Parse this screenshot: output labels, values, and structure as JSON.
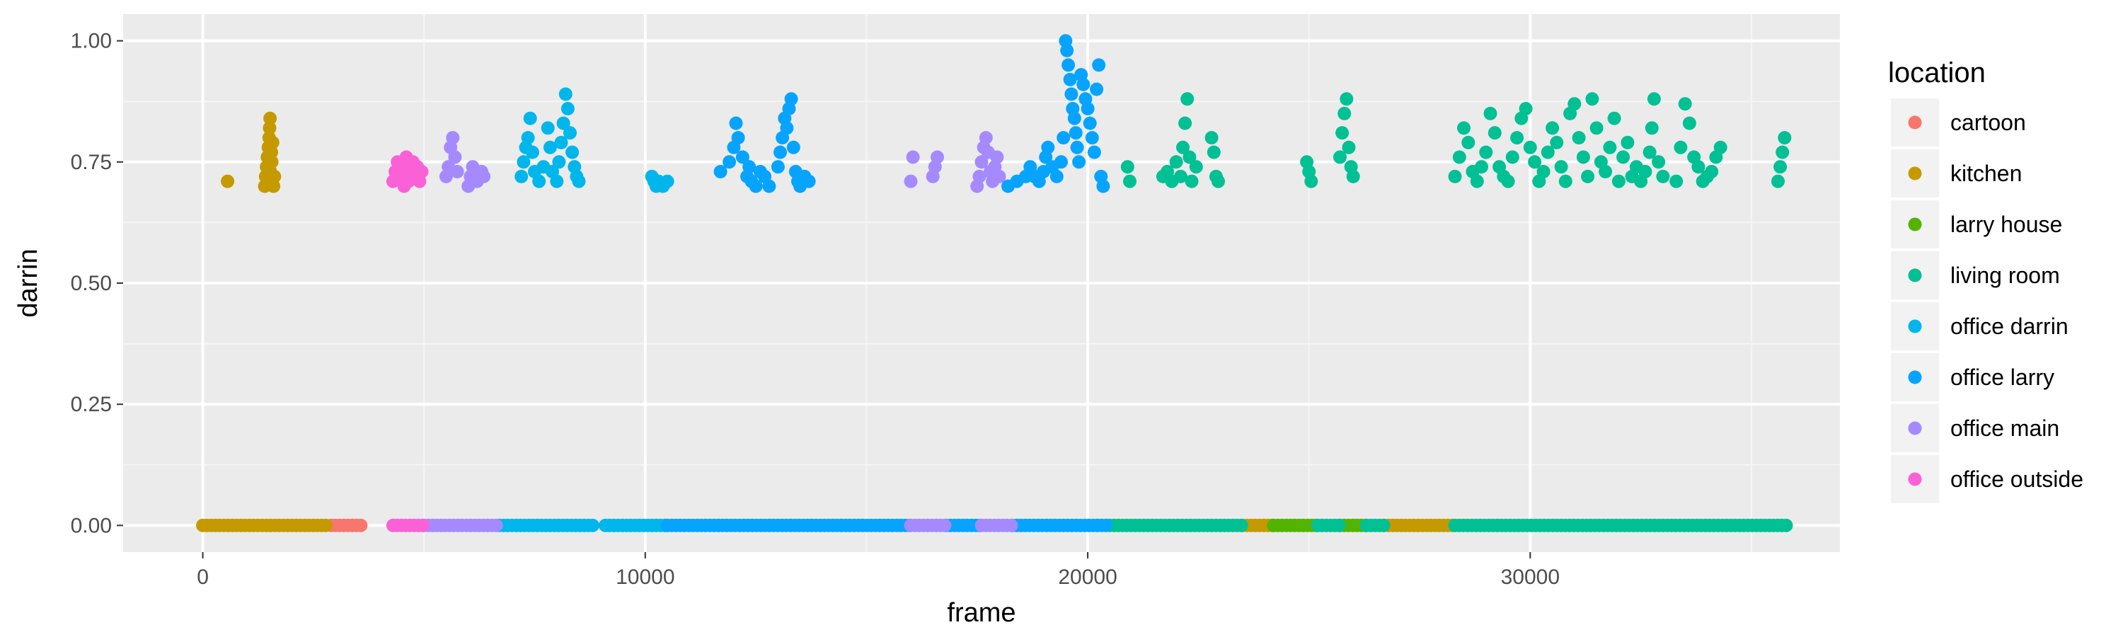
{
  "chart_data": {
    "type": "scatter",
    "title": "",
    "xlabel": "frame",
    "ylabel": "darrin",
    "xlim": [
      -1800,
      37000
    ],
    "ylim": [
      -0.055,
      1.055
    ],
    "x_ticks": [
      0,
      10000,
      20000,
      30000
    ],
    "x_tick_labels": [
      "0",
      "10000",
      "20000",
      "30000"
    ],
    "y_ticks": [
      0.0,
      0.25,
      0.5,
      0.75,
      1.0
    ],
    "y_tick_labels": [
      "0.00",
      "0.25",
      "0.50",
      "0.75",
      "1.00"
    ],
    "grid": true,
    "legend_title": "location",
    "legend_position": "right",
    "series": [
      {
        "name": "cartoon",
        "color": "#F8766D",
        "zero_ranges": [
          [
            2900,
            3650
          ]
        ],
        "points": []
      },
      {
        "name": "kitchen",
        "color": "#C49A00",
        "zero_ranges": [
          [
            0,
            2850
          ],
          [
            23500,
            24200
          ],
          [
            26700,
            28300
          ]
        ],
        "points": [
          [
            560,
            0.71
          ],
          [
            1400,
            0.7
          ],
          [
            1420,
            0.72
          ],
          [
            1440,
            0.74
          ],
          [
            1460,
            0.76
          ],
          [
            1480,
            0.78
          ],
          [
            1500,
            0.8
          ],
          [
            1510,
            0.82
          ],
          [
            1520,
            0.84
          ],
          [
            1530,
            0.73
          ],
          [
            1540,
            0.71
          ],
          [
            1550,
            0.77
          ],
          [
            1560,
            0.75
          ],
          [
            1580,
            0.79
          ],
          [
            1600,
            0.7
          ],
          [
            1620,
            0.72
          ]
        ]
      },
      {
        "name": "larry house",
        "color": "#53B400",
        "zero_ranges": [
          [
            24200,
            25200
          ],
          [
            25700,
            26300
          ]
        ],
        "points": []
      },
      {
        "name": "living room",
        "color": "#00C094",
        "zero_ranges": [
          [
            20500,
            23500
          ],
          [
            25200,
            25700
          ],
          [
            26300,
            26700
          ],
          [
            28300,
            35800
          ]
        ],
        "points": [
          [
            20900,
            0.74
          ],
          [
            20950,
            0.71
          ],
          [
            21700,
            0.72
          ],
          [
            21800,
            0.73
          ],
          [
            21900,
            0.71
          ],
          [
            22000,
            0.75
          ],
          [
            22100,
            0.72
          ],
          [
            22150,
            0.78
          ],
          [
            22200,
            0.83
          ],
          [
            22250,
            0.88
          ],
          [
            22300,
            0.76
          ],
          [
            22350,
            0.71
          ],
          [
            22450,
            0.74
          ],
          [
            22800,
            0.8
          ],
          [
            22850,
            0.77
          ],
          [
            22900,
            0.72
          ],
          [
            22950,
            0.71
          ],
          [
            24950,
            0.75
          ],
          [
            25000,
            0.73
          ],
          [
            25050,
            0.71
          ],
          [
            25700,
            0.76
          ],
          [
            25750,
            0.81
          ],
          [
            25800,
            0.85
          ],
          [
            25850,
            0.88
          ],
          [
            25900,
            0.78
          ],
          [
            25950,
            0.74
          ],
          [
            26000,
            0.72
          ],
          [
            28300,
            0.72
          ],
          [
            28400,
            0.76
          ],
          [
            28500,
            0.82
          ],
          [
            28600,
            0.79
          ],
          [
            28700,
            0.73
          ],
          [
            28800,
            0.71
          ],
          [
            28900,
            0.74
          ],
          [
            29000,
            0.77
          ],
          [
            29100,
            0.85
          ],
          [
            29200,
            0.81
          ],
          [
            29300,
            0.74
          ],
          [
            29400,
            0.72
          ],
          [
            29500,
            0.71
          ],
          [
            29600,
            0.76
          ],
          [
            29700,
            0.8
          ],
          [
            29800,
            0.84
          ],
          [
            29900,
            0.86
          ],
          [
            30000,
            0.78
          ],
          [
            30100,
            0.75
          ],
          [
            30200,
            0.71
          ],
          [
            30300,
            0.73
          ],
          [
            30400,
            0.77
          ],
          [
            30500,
            0.82
          ],
          [
            30600,
            0.79
          ],
          [
            30700,
            0.74
          ],
          [
            30800,
            0.71
          ],
          [
            30900,
            0.85
          ],
          [
            31000,
            0.87
          ],
          [
            31100,
            0.8
          ],
          [
            31200,
            0.76
          ],
          [
            31300,
            0.72
          ],
          [
            31400,
            0.88
          ],
          [
            31500,
            0.82
          ],
          [
            31600,
            0.75
          ],
          [
            31700,
            0.73
          ],
          [
            31800,
            0.78
          ],
          [
            31900,
            0.84
          ],
          [
            32000,
            0.71
          ],
          [
            32100,
            0.76
          ],
          [
            32200,
            0.79
          ],
          [
            32300,
            0.72
          ],
          [
            32400,
            0.74
          ],
          [
            32500,
            0.71
          ],
          [
            32600,
            0.73
          ],
          [
            32700,
            0.77
          ],
          [
            32750,
            0.82
          ],
          [
            32800,
            0.88
          ],
          [
            32900,
            0.75
          ],
          [
            33000,
            0.72
          ],
          [
            33300,
            0.71
          ],
          [
            33400,
            0.78
          ],
          [
            33500,
            0.87
          ],
          [
            33600,
            0.83
          ],
          [
            33700,
            0.76
          ],
          [
            33800,
            0.74
          ],
          [
            33900,
            0.71
          ],
          [
            34000,
            0.72
          ],
          [
            34100,
            0.73
          ],
          [
            34200,
            0.76
          ],
          [
            34300,
            0.78
          ],
          [
            35600,
            0.71
          ],
          [
            35650,
            0.74
          ],
          [
            35700,
            0.77
          ],
          [
            35750,
            0.8
          ]
        ]
      },
      {
        "name": "office darrin",
        "color": "#00B6EB",
        "zero_ranges": [
          [
            6700,
            8900
          ],
          [
            9100,
            10500
          ]
        ],
        "points": [
          [
            7200,
            0.72
          ],
          [
            7250,
            0.75
          ],
          [
            7300,
            0.78
          ],
          [
            7350,
            0.8
          ],
          [
            7400,
            0.84
          ],
          [
            7450,
            0.77
          ],
          [
            7500,
            0.73
          ],
          [
            7600,
            0.71
          ],
          [
            7700,
            0.74
          ],
          [
            7800,
            0.82
          ],
          [
            7850,
            0.78
          ],
          [
            7900,
            0.73
          ],
          [
            8000,
            0.71
          ],
          [
            8050,
            0.75
          ],
          [
            8100,
            0.79
          ],
          [
            8150,
            0.83
          ],
          [
            8200,
            0.89
          ],
          [
            8250,
            0.86
          ],
          [
            8300,
            0.81
          ],
          [
            8350,
            0.77
          ],
          [
            8400,
            0.74
          ],
          [
            8450,
            0.72
          ],
          [
            8500,
            0.71
          ],
          [
            10150,
            0.72
          ],
          [
            10200,
            0.71
          ],
          [
            10250,
            0.7
          ],
          [
            10300,
            0.71
          ],
          [
            10400,
            0.7
          ],
          [
            10500,
            0.71
          ]
        ]
      },
      {
        "name": "office larry",
        "color": "#06A4FF",
        "zero_ranges": [
          [
            10500,
            16000
          ],
          [
            16800,
            17600
          ],
          [
            18300,
            20500
          ]
        ],
        "points": [
          [
            11700,
            0.73
          ],
          [
            11900,
            0.75
          ],
          [
            12000,
            0.78
          ],
          [
            12050,
            0.83
          ],
          [
            12100,
            0.8
          ],
          [
            12200,
            0.76
          ],
          [
            12300,
            0.72
          ],
          [
            12350,
            0.74
          ],
          [
            12400,
            0.71
          ],
          [
            12500,
            0.7
          ],
          [
            12600,
            0.73
          ],
          [
            12700,
            0.72
          ],
          [
            12800,
            0.7
          ],
          [
            13000,
            0.74
          ],
          [
            13050,
            0.77
          ],
          [
            13100,
            0.8
          ],
          [
            13150,
            0.84
          ],
          [
            13200,
            0.82
          ],
          [
            13250,
            0.86
          ],
          [
            13300,
            0.88
          ],
          [
            13350,
            0.78
          ],
          [
            13400,
            0.73
          ],
          [
            13450,
            0.71
          ],
          [
            13500,
            0.7
          ],
          [
            13600,
            0.72
          ],
          [
            13700,
            0.71
          ],
          [
            18200,
            0.7
          ],
          [
            18400,
            0.71
          ],
          [
            18600,
            0.72
          ],
          [
            18700,
            0.74
          ],
          [
            18800,
            0.72
          ],
          [
            18900,
            0.71
          ],
          [
            19000,
            0.73
          ],
          [
            19050,
            0.76
          ],
          [
            19100,
            0.78
          ],
          [
            19200,
            0.74
          ],
          [
            19300,
            0.72
          ],
          [
            19400,
            0.75
          ],
          [
            19450,
            0.8
          ],
          [
            19500,
            1.0
          ],
          [
            19530,
            0.98
          ],
          [
            19560,
            0.95
          ],
          [
            19600,
            0.92
          ],
          [
            19630,
            0.89
          ],
          [
            19660,
            0.86
          ],
          [
            19700,
            0.84
          ],
          [
            19730,
            0.81
          ],
          [
            19760,
            0.78
          ],
          [
            19800,
            0.75
          ],
          [
            19850,
            0.93
          ],
          [
            19900,
            0.91
          ],
          [
            19950,
            0.88
          ],
          [
            20000,
            0.86
          ],
          [
            20050,
            0.83
          ],
          [
            20100,
            0.8
          ],
          [
            20150,
            0.77
          ],
          [
            20200,
            0.9
          ],
          [
            20250,
            0.95
          ],
          [
            20300,
            0.72
          ],
          [
            20350,
            0.7
          ]
        ]
      },
      {
        "name": "office main",
        "color": "#A58AFF",
        "zero_ranges": [
          [
            5000,
            6700
          ],
          [
            16000,
            16800
          ],
          [
            17600,
            18300
          ]
        ],
        "points": [
          [
            5500,
            0.72
          ],
          [
            5550,
            0.74
          ],
          [
            5600,
            0.78
          ],
          [
            5650,
            0.8
          ],
          [
            5700,
            0.76
          ],
          [
            5750,
            0.73
          ],
          [
            6000,
            0.7
          ],
          [
            6050,
            0.72
          ],
          [
            6100,
            0.74
          ],
          [
            6200,
            0.71
          ],
          [
            6300,
            0.73
          ],
          [
            6350,
            0.72
          ],
          [
            16000,
            0.71
          ],
          [
            16050,
            0.76
          ],
          [
            16500,
            0.72
          ],
          [
            16550,
            0.74
          ],
          [
            16600,
            0.76
          ],
          [
            17500,
            0.7
          ],
          [
            17550,
            0.72
          ],
          [
            17600,
            0.75
          ],
          [
            17650,
            0.78
          ],
          [
            17700,
            0.8
          ],
          [
            17750,
            0.77
          ],
          [
            17800,
            0.73
          ],
          [
            17850,
            0.71
          ],
          [
            17900,
            0.74
          ],
          [
            17950,
            0.76
          ],
          [
            18000,
            0.72
          ]
        ]
      },
      {
        "name": "office outside",
        "color": "#FB61D7",
        "zero_ranges": [
          [
            4300,
            5000
          ]
        ],
        "points": [
          [
            4300,
            0.71
          ],
          [
            4350,
            0.73
          ],
          [
            4400,
            0.75
          ],
          [
            4450,
            0.72
          ],
          [
            4500,
            0.74
          ],
          [
            4550,
            0.7
          ],
          [
            4600,
            0.76
          ],
          [
            4650,
            0.71
          ],
          [
            4700,
            0.73
          ],
          [
            4750,
            0.75
          ],
          [
            4800,
            0.72
          ],
          [
            4850,
            0.74
          ],
          [
            4900,
            0.71
          ],
          [
            4950,
            0.73
          ]
        ]
      }
    ]
  }
}
